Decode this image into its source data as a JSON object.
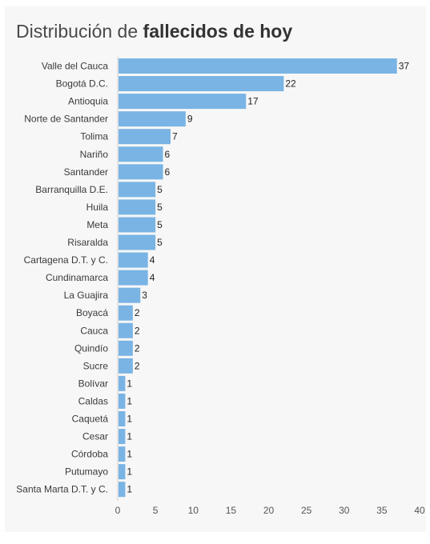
{
  "title": {
    "regular": "Distribución de ",
    "bold": "fallecidos de hoy"
  },
  "colors": {
    "bar": "#79b4e4",
    "background": "#f7f7f7",
    "axis": "#cccccc"
  },
  "chart_data": {
    "type": "bar",
    "orientation": "horizontal",
    "title": "Distribución de fallecidos de hoy",
    "xlabel": "",
    "ylabel": "",
    "xlim": [
      0,
      40
    ],
    "xticks": [
      0,
      5,
      10,
      15,
      20,
      25,
      30,
      35,
      40
    ],
    "grid": false,
    "categories": [
      "Valle del Cauca",
      "Bogotá D.C.",
      "Antioquia",
      "Norte de Santander",
      "Tolima",
      "Nariño",
      "Santander",
      "Barranquilla D.E.",
      "Huila",
      "Meta",
      "Risaralda",
      "Cartagena D.T. y C.",
      "Cundinamarca",
      "La Guajira",
      "Boyacá",
      "Cauca",
      "Quindío",
      "Sucre",
      "Bolívar",
      "Caldas",
      "Caquetá",
      "Cesar",
      "Córdoba",
      "Putumayo",
      "Santa Marta D.T. y C."
    ],
    "values": [
      37,
      22,
      17,
      9,
      7,
      6,
      6,
      5,
      5,
      5,
      5,
      4,
      4,
      3,
      2,
      2,
      2,
      2,
      1,
      1,
      1,
      1,
      1,
      1,
      1
    ]
  }
}
